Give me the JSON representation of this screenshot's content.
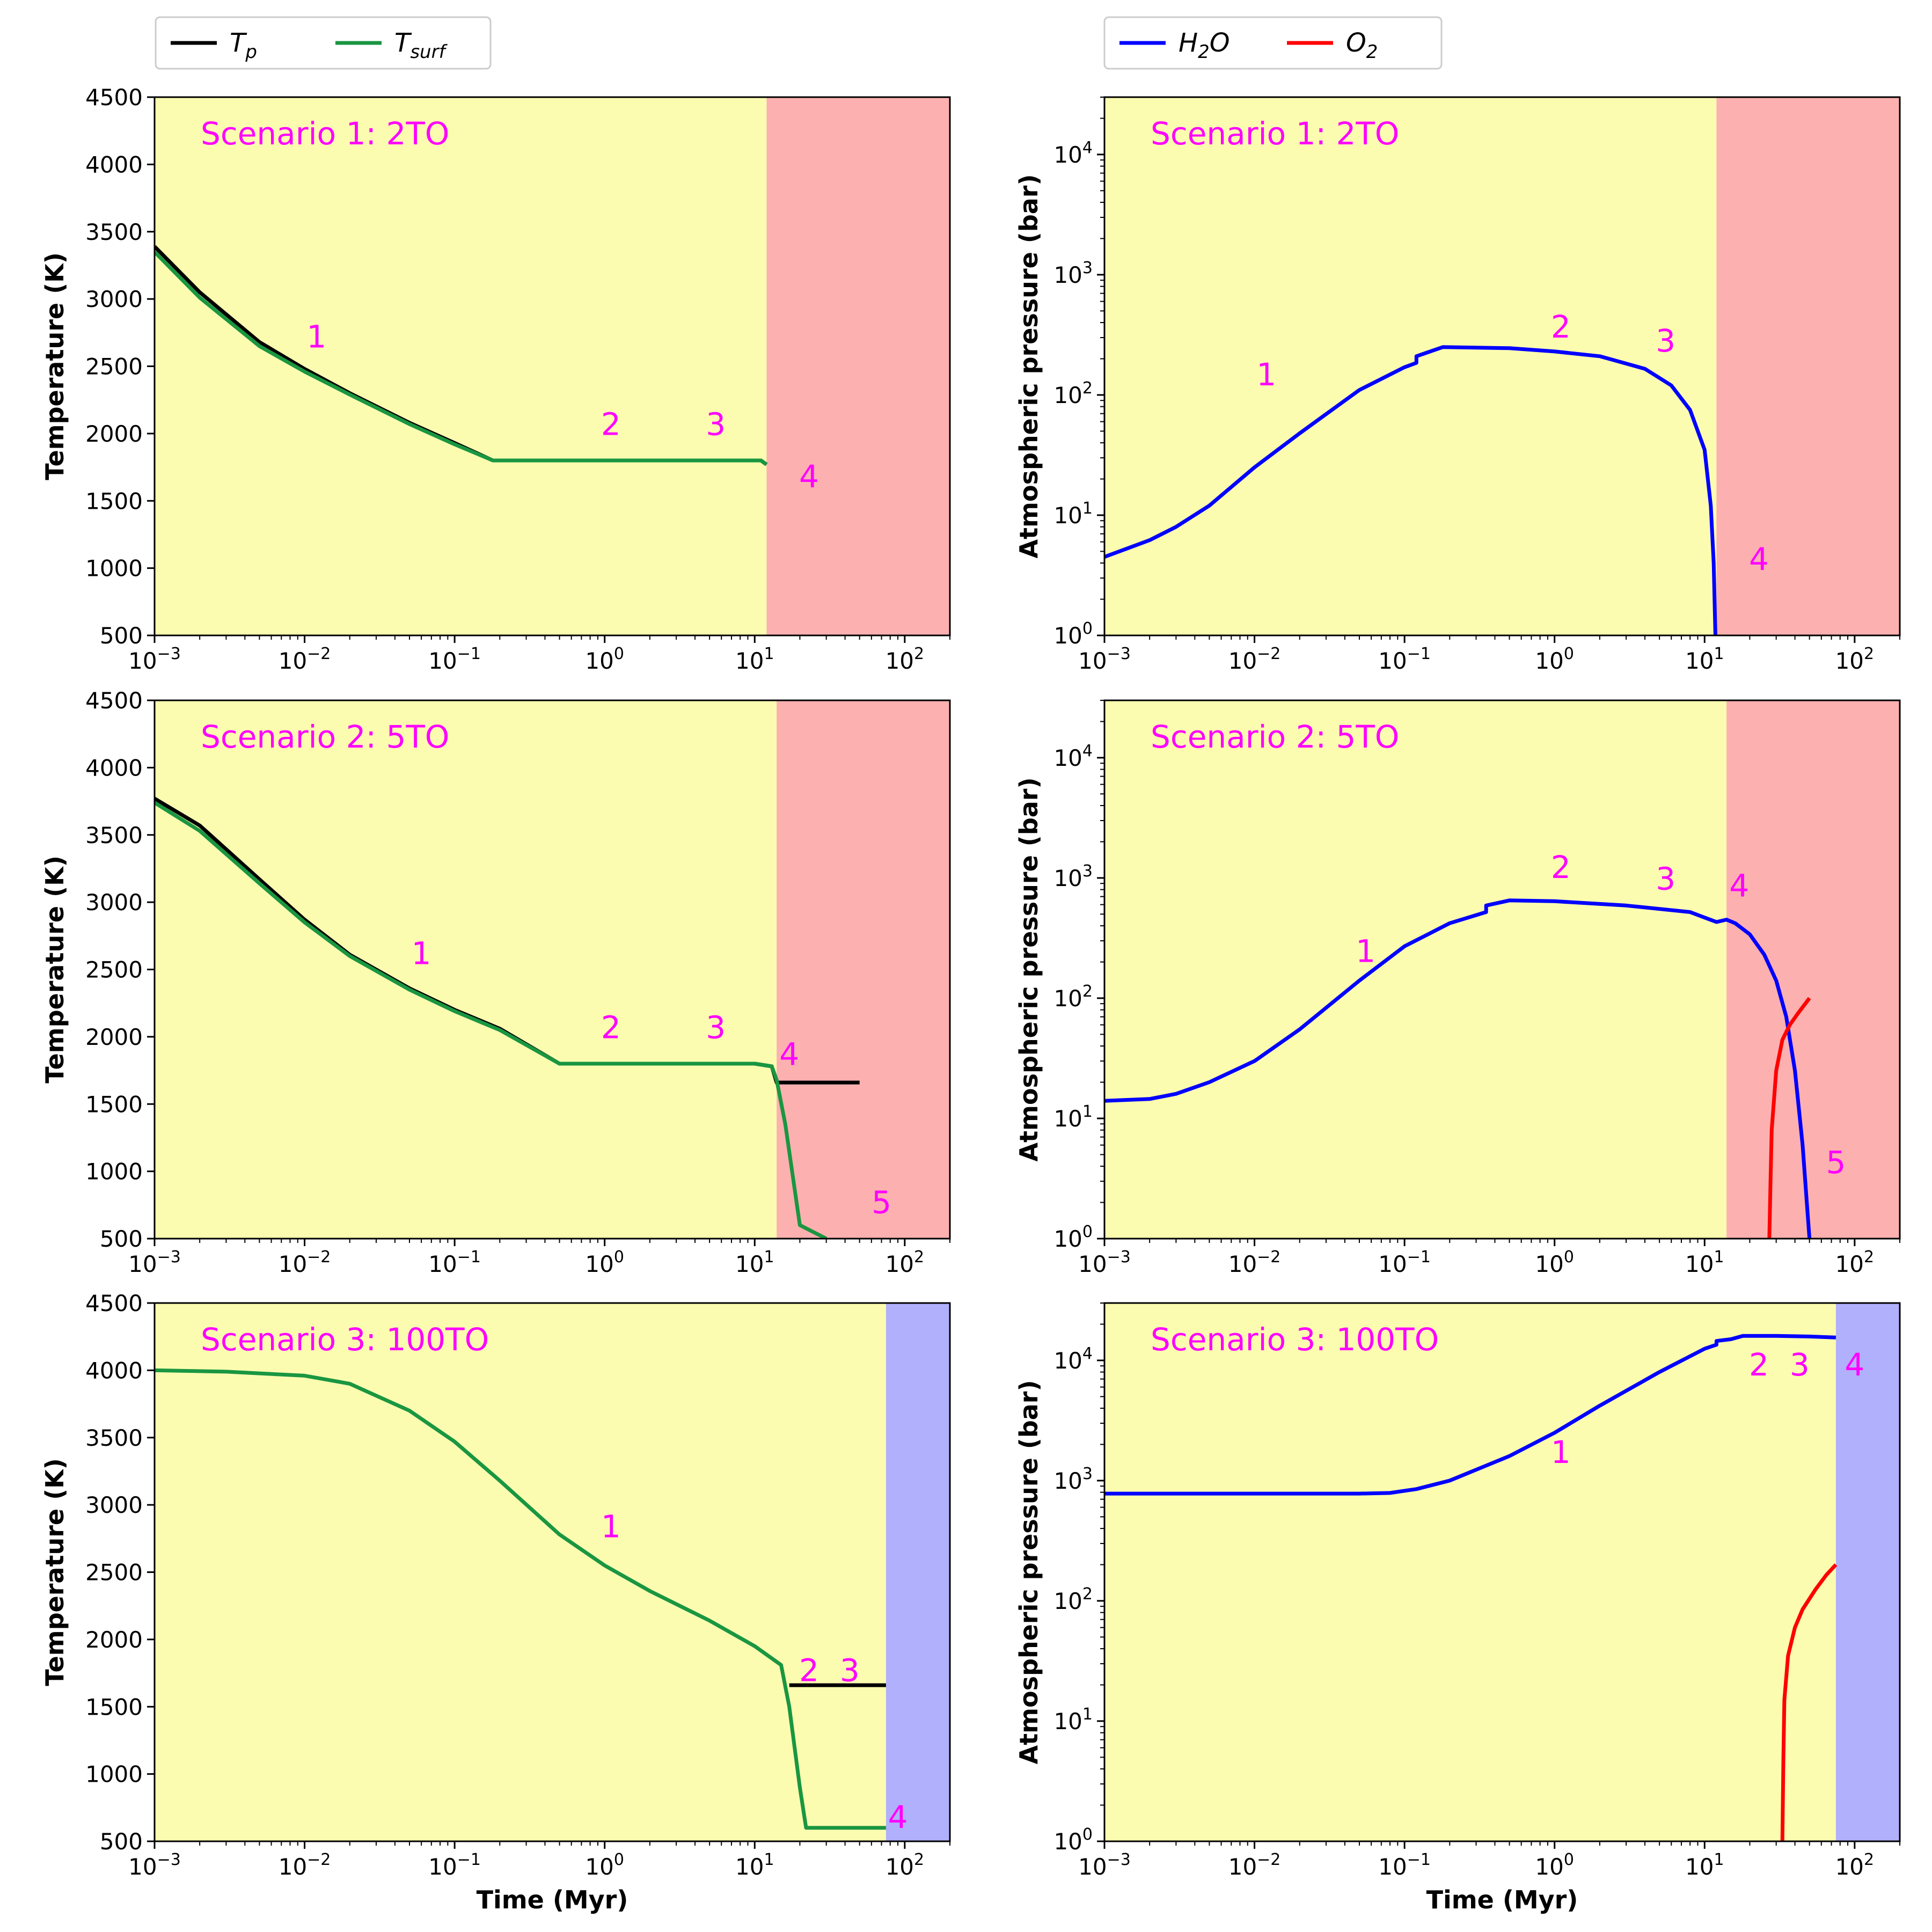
{
  "colors": {
    "Tp": "#000000",
    "Tsurf": "#1a9641",
    "H2O": "#0000ff",
    "O2": "#ff0000",
    "phase_yellow": "#fcfcb0",
    "phase_red": "#fdb0b0",
    "phase_blue": "#b0b0fc",
    "annotation": "#ff00ff"
  },
  "legends": {
    "temperature": [
      {
        "key": "Tp",
        "label": "T",
        "sub": "p"
      },
      {
        "key": "Tsurf",
        "label": "T",
        "sub": "surf"
      }
    ],
    "pressure": [
      {
        "key": "H2O",
        "label": "H",
        "sub": "2",
        "tail": "O"
      },
      {
        "key": "O2",
        "label": "O",
        "sub": "2",
        "tail": ""
      }
    ]
  },
  "chart_data": [
    {
      "id": "temp-s1",
      "row": 0,
      "col": 0,
      "type": "line",
      "title": "Scenario 1: 2TO",
      "xlabel": "",
      "ylabel": "Temperature (K)",
      "xscale": "log",
      "xlim": [
        0.001,
        200
      ],
      "yscale": "linear",
      "ylim": [
        500,
        4500
      ],
      "yticks": [
        500,
        1000,
        1500,
        2000,
        2500,
        3000,
        3500,
        4000,
        4500
      ],
      "xticks": [
        {
          "base": "10",
          "exp": "−3",
          "v": 0.001
        },
        {
          "base": "10",
          "exp": "−2",
          "v": 0.01
        },
        {
          "base": "10",
          "exp": "−1",
          "v": 0.1
        },
        {
          "base": "10",
          "exp": "0",
          "v": 1
        },
        {
          "base": "10",
          "exp": "1",
          "v": 10
        },
        {
          "base": "10",
          "exp": "2",
          "v": 100
        }
      ],
      "shading": [
        {
          "from": 0.001,
          "to": 12,
          "color": "phase_yellow"
        },
        {
          "from": 12,
          "to": 200,
          "color": "phase_red"
        }
      ],
      "series": [
        {
          "name": "Tp",
          "color": "Tp",
          "x": [
            0.001,
            0.002,
            0.005,
            0.01,
            0.02,
            0.05,
            0.1,
            0.18,
            1,
            5,
            11,
            12
          ],
          "y": [
            3390,
            3050,
            2680,
            2480,
            2300,
            2080,
            1930,
            1800,
            1800,
            1800,
            1800,
            1770
          ]
        },
        {
          "name": "Tsurf",
          "color": "Tsurf",
          "x": [
            0.001,
            0.002,
            0.005,
            0.01,
            0.02,
            0.05,
            0.1,
            0.18,
            1,
            5,
            11,
            12
          ],
          "y": [
            3350,
            3010,
            2650,
            2460,
            2290,
            2070,
            1920,
            1800,
            1800,
            1800,
            1800,
            1770
          ]
        }
      ],
      "annotations": [
        {
          "text": "1",
          "x": 0.012,
          "y": 2640
        },
        {
          "text": "2",
          "x": 1.1,
          "y": 1990
        },
        {
          "text": "3",
          "x": 5.5,
          "y": 1990
        },
        {
          "text": "4",
          "x": 23,
          "y": 1600
        }
      ]
    },
    {
      "id": "pres-s1",
      "row": 0,
      "col": 1,
      "type": "line",
      "title": "Scenario 1: 2TO",
      "xlabel": "",
      "ylabel": "Atmospheric pressure (bar)",
      "xscale": "log",
      "xlim": [
        0.001,
        200
      ],
      "yscale": "log",
      "ylim": [
        1,
        30000
      ],
      "yticks": [
        {
          "base": "10",
          "exp": "0",
          "v": 1
        },
        {
          "base": "10",
          "exp": "1",
          "v": 10
        },
        {
          "base": "10",
          "exp": "2",
          "v": 100
        },
        {
          "base": "10",
          "exp": "3",
          "v": 1000
        },
        {
          "base": "10",
          "exp": "4",
          "v": 10000
        }
      ],
      "xticks": [
        {
          "base": "10",
          "exp": "−3",
          "v": 0.001
        },
        {
          "base": "10",
          "exp": "−2",
          "v": 0.01
        },
        {
          "base": "10",
          "exp": "−1",
          "v": 0.1
        },
        {
          "base": "10",
          "exp": "0",
          "v": 1
        },
        {
          "base": "10",
          "exp": "1",
          "v": 10
        },
        {
          "base": "10",
          "exp": "2",
          "v": 100
        }
      ],
      "shading": [
        {
          "from": 0.001,
          "to": 12,
          "color": "phase_yellow"
        },
        {
          "from": 12,
          "to": 200,
          "color": "phase_red"
        }
      ],
      "series": [
        {
          "name": "H2O",
          "color": "H2O",
          "x": [
            0.001,
            0.002,
            0.003,
            0.005,
            0.01,
            0.02,
            0.05,
            0.1,
            0.12,
            0.12,
            0.18,
            0.5,
            1,
            2,
            4,
            6,
            8,
            10,
            11,
            11.5,
            11.8
          ],
          "y": [
            4.5,
            6.2,
            8,
            12,
            25,
            48,
            110,
            170,
            185,
            210,
            250,
            245,
            230,
            210,
            165,
            120,
            75,
            35,
            12,
            4,
            1
          ]
        }
      ],
      "annotations": [
        {
          "text": "1",
          "x": 0.012,
          "y": 120
        },
        {
          "text": "2",
          "x": 1.1,
          "y": 300
        },
        {
          "text": "3",
          "x": 5.5,
          "y": 230
        },
        {
          "text": "4",
          "x": 23,
          "y": 3.5
        }
      ]
    },
    {
      "id": "temp-s2",
      "row": 1,
      "col": 0,
      "type": "line",
      "title": "Scenario 2: 5TO",
      "xlabel": "",
      "ylabel": "Temperature (K)",
      "xscale": "log",
      "xlim": [
        0.001,
        200
      ],
      "yscale": "linear",
      "ylim": [
        500,
        4500
      ],
      "yticks": [
        500,
        1000,
        1500,
        2000,
        2500,
        3000,
        3500,
        4000,
        4500
      ],
      "xticks": [
        {
          "base": "10",
          "exp": "−3",
          "v": 0.001
        },
        {
          "base": "10",
          "exp": "−2",
          "v": 0.01
        },
        {
          "base": "10",
          "exp": "−1",
          "v": 0.1
        },
        {
          "base": "10",
          "exp": "0",
          "v": 1
        },
        {
          "base": "10",
          "exp": "1",
          "v": 10
        },
        {
          "base": "10",
          "exp": "2",
          "v": 100
        }
      ],
      "shading": [
        {
          "from": 0.001,
          "to": 14,
          "color": "phase_yellow"
        },
        {
          "from": 14,
          "to": 200,
          "color": "phase_red"
        }
      ],
      "series": [
        {
          "name": "Tp",
          "color": "Tp",
          "x": [
            0.001,
            0.002,
            0.005,
            0.01,
            0.02,
            0.05,
            0.1,
            0.2,
            0.5,
            1,
            5,
            10,
            13,
            14,
            15,
            50
          ],
          "y": [
            3770,
            3570,
            3170,
            2870,
            2610,
            2360,
            2200,
            2060,
            1800,
            1800,
            1800,
            1800,
            1780,
            1660,
            1660,
            1660
          ]
        },
        {
          "name": "Tsurf",
          "color": "Tsurf",
          "x": [
            0.001,
            0.002,
            0.005,
            0.01,
            0.02,
            0.05,
            0.1,
            0.2,
            0.5,
            1,
            5,
            10,
            13,
            14,
            16,
            20,
            30
          ],
          "y": [
            3740,
            3530,
            3140,
            2850,
            2600,
            2350,
            2190,
            2050,
            1800,
            1800,
            1800,
            1800,
            1780,
            1680,
            1350,
            600,
            500
          ]
        }
      ],
      "annotations": [
        {
          "text": "1",
          "x": 0.06,
          "y": 2540
        },
        {
          "text": "2",
          "x": 1.1,
          "y": 1990
        },
        {
          "text": "3",
          "x": 5.5,
          "y": 1990
        },
        {
          "text": "4",
          "x": 17,
          "y": 1790
        },
        {
          "text": "5",
          "x": 70,
          "y": 690
        }
      ]
    },
    {
      "id": "pres-s2",
      "row": 1,
      "col": 1,
      "type": "line",
      "title": "Scenario 2: 5TO",
      "xlabel": "",
      "ylabel": "Atmospheric pressure (bar)",
      "xscale": "log",
      "xlim": [
        0.001,
        200
      ],
      "yscale": "log",
      "ylim": [
        1,
        30000
      ],
      "yticks": [
        {
          "base": "10",
          "exp": "0",
          "v": 1
        },
        {
          "base": "10",
          "exp": "1",
          "v": 10
        },
        {
          "base": "10",
          "exp": "2",
          "v": 100
        },
        {
          "base": "10",
          "exp": "3",
          "v": 1000
        },
        {
          "base": "10",
          "exp": "4",
          "v": 10000
        }
      ],
      "xticks": [
        {
          "base": "10",
          "exp": "−3",
          "v": 0.001
        },
        {
          "base": "10",
          "exp": "−2",
          "v": 0.01
        },
        {
          "base": "10",
          "exp": "−1",
          "v": 0.1
        },
        {
          "base": "10",
          "exp": "0",
          "v": 1
        },
        {
          "base": "10",
          "exp": "1",
          "v": 10
        },
        {
          "base": "10",
          "exp": "2",
          "v": 100
        }
      ],
      "shading": [
        {
          "from": 0.001,
          "to": 14,
          "color": "phase_yellow"
        },
        {
          "from": 14,
          "to": 200,
          "color": "phase_red"
        }
      ],
      "series": [
        {
          "name": "H2O",
          "color": "H2O",
          "x": [
            0.001,
            0.002,
            0.003,
            0.005,
            0.01,
            0.02,
            0.05,
            0.1,
            0.2,
            0.35,
            0.35,
            0.5,
            1,
            3,
            8,
            12,
            14,
            16,
            20,
            25,
            30,
            35,
            40,
            45,
            48,
            50
          ],
          "y": [
            14,
            14.5,
            16,
            20,
            30,
            55,
            140,
            270,
            420,
            520,
            590,
            650,
            640,
            590,
            520,
            430,
            450,
            420,
            340,
            230,
            140,
            70,
            25,
            6,
            2,
            1
          ]
        },
        {
          "name": "O2",
          "color": "O2",
          "x": [
            27,
            27.5,
            28,
            30,
            33,
            37,
            42,
            50
          ],
          "y": [
            1,
            3,
            8,
            25,
            45,
            60,
            75,
            100
          ]
        }
      ],
      "annotations": [
        {
          "text": "1",
          "x": 0.055,
          "y": 200
        },
        {
          "text": "2",
          "x": 1.1,
          "y": 1000
        },
        {
          "text": "3",
          "x": 5.5,
          "y": 800
        },
        {
          "text": "4",
          "x": 17,
          "y": 700
        },
        {
          "text": "5",
          "x": 75,
          "y": 3.5
        }
      ]
    },
    {
      "id": "temp-s3",
      "row": 2,
      "col": 0,
      "type": "line",
      "title": "Scenario 3: 100TO",
      "xlabel": "Time (Myr)",
      "ylabel": "Temperature (K)",
      "xscale": "log",
      "xlim": [
        0.001,
        200
      ],
      "yscale": "linear",
      "ylim": [
        500,
        4500
      ],
      "yticks": [
        500,
        1000,
        1500,
        2000,
        2500,
        3000,
        3500,
        4000,
        4500
      ],
      "xticks": [
        {
          "base": "10",
          "exp": "−3",
          "v": 0.001
        },
        {
          "base": "10",
          "exp": "−2",
          "v": 0.01
        },
        {
          "base": "10",
          "exp": "−1",
          "v": 0.1
        },
        {
          "base": "10",
          "exp": "0",
          "v": 1
        },
        {
          "base": "10",
          "exp": "1",
          "v": 10
        },
        {
          "base": "10",
          "exp": "2",
          "v": 100
        }
      ],
      "shading": [
        {
          "from": 0.001,
          "to": 75,
          "color": "phase_yellow"
        },
        {
          "from": 75,
          "to": 200,
          "color": "phase_blue"
        }
      ],
      "series": [
        {
          "name": "Tp",
          "color": "Tp",
          "x": [
            17,
            75
          ],
          "y": [
            1660,
            1660
          ]
        },
        {
          "name": "Tsurf",
          "color": "Tsurf",
          "x": [
            0.001,
            0.003,
            0.01,
            0.02,
            0.05,
            0.1,
            0.2,
            0.5,
            1,
            2,
            5,
            10,
            15,
            17,
            20,
            22,
            75
          ],
          "y": [
            4000,
            3990,
            3960,
            3900,
            3700,
            3470,
            3180,
            2780,
            2550,
            2360,
            2140,
            1950,
            1810,
            1500,
            900,
            600,
            600
          ]
        }
      ],
      "annotations": [
        {
          "text": "1",
          "x": 1.1,
          "y": 2760
        },
        {
          "text": "2",
          "x": 23,
          "y": 1690
        },
        {
          "text": "3",
          "x": 43,
          "y": 1690
        },
        {
          "text": "4",
          "x": 90,
          "y": 600
        }
      ]
    },
    {
      "id": "pres-s3",
      "row": 2,
      "col": 1,
      "type": "line",
      "title": "Scenario 3: 100TO",
      "xlabel": "Time (Myr)",
      "ylabel": "Atmospheric pressure (bar)",
      "xscale": "log",
      "xlim": [
        0.001,
        200
      ],
      "yscale": "log",
      "ylim": [
        1,
        30000
      ],
      "yticks": [
        {
          "base": "10",
          "exp": "0",
          "v": 1
        },
        {
          "base": "10",
          "exp": "1",
          "v": 10
        },
        {
          "base": "10",
          "exp": "2",
          "v": 100
        },
        {
          "base": "10",
          "exp": "3",
          "v": 1000
        },
        {
          "base": "10",
          "exp": "4",
          "v": 10000
        }
      ],
      "xticks": [
        {
          "base": "10",
          "exp": "−3",
          "v": 0.001
        },
        {
          "base": "10",
          "exp": "−2",
          "v": 0.01
        },
        {
          "base": "10",
          "exp": "−1",
          "v": 0.1
        },
        {
          "base": "10",
          "exp": "0",
          "v": 1
        },
        {
          "base": "10",
          "exp": "1",
          "v": 10
        },
        {
          "base": "10",
          "exp": "2",
          "v": 100
        }
      ],
      "shading": [
        {
          "from": 0.001,
          "to": 75,
          "color": "phase_yellow"
        },
        {
          "from": 75,
          "to": 200,
          "color": "phase_blue"
        }
      ],
      "series": [
        {
          "name": "H2O",
          "color": "H2O",
          "x": [
            0.001,
            0.01,
            0.05,
            0.08,
            0.12,
            0.2,
            0.5,
            1,
            2,
            5,
            10,
            12,
            12,
            15,
            18,
            30,
            50,
            75
          ],
          "y": [
            780,
            780,
            780,
            790,
            850,
            1000,
            1600,
            2500,
            4200,
            8000,
            12500,
            13500,
            14500,
            15000,
            16000,
            16000,
            15800,
            15500
          ]
        },
        {
          "name": "O2",
          "color": "O2",
          "x": [
            33,
            33.5,
            34,
            36,
            40,
            45,
            55,
            65,
            75
          ],
          "y": [
            1,
            5,
            15,
            35,
            60,
            85,
            125,
            165,
            200
          ]
        }
      ],
      "annotations": [
        {
          "text": "1",
          "x": 1.1,
          "y": 1400
        },
        {
          "text": "2",
          "x": 23,
          "y": 7500
        },
        {
          "text": "3",
          "x": 43,
          "y": 7500
        },
        {
          "text": "4",
          "x": 100,
          "y": 7500
        }
      ]
    }
  ]
}
